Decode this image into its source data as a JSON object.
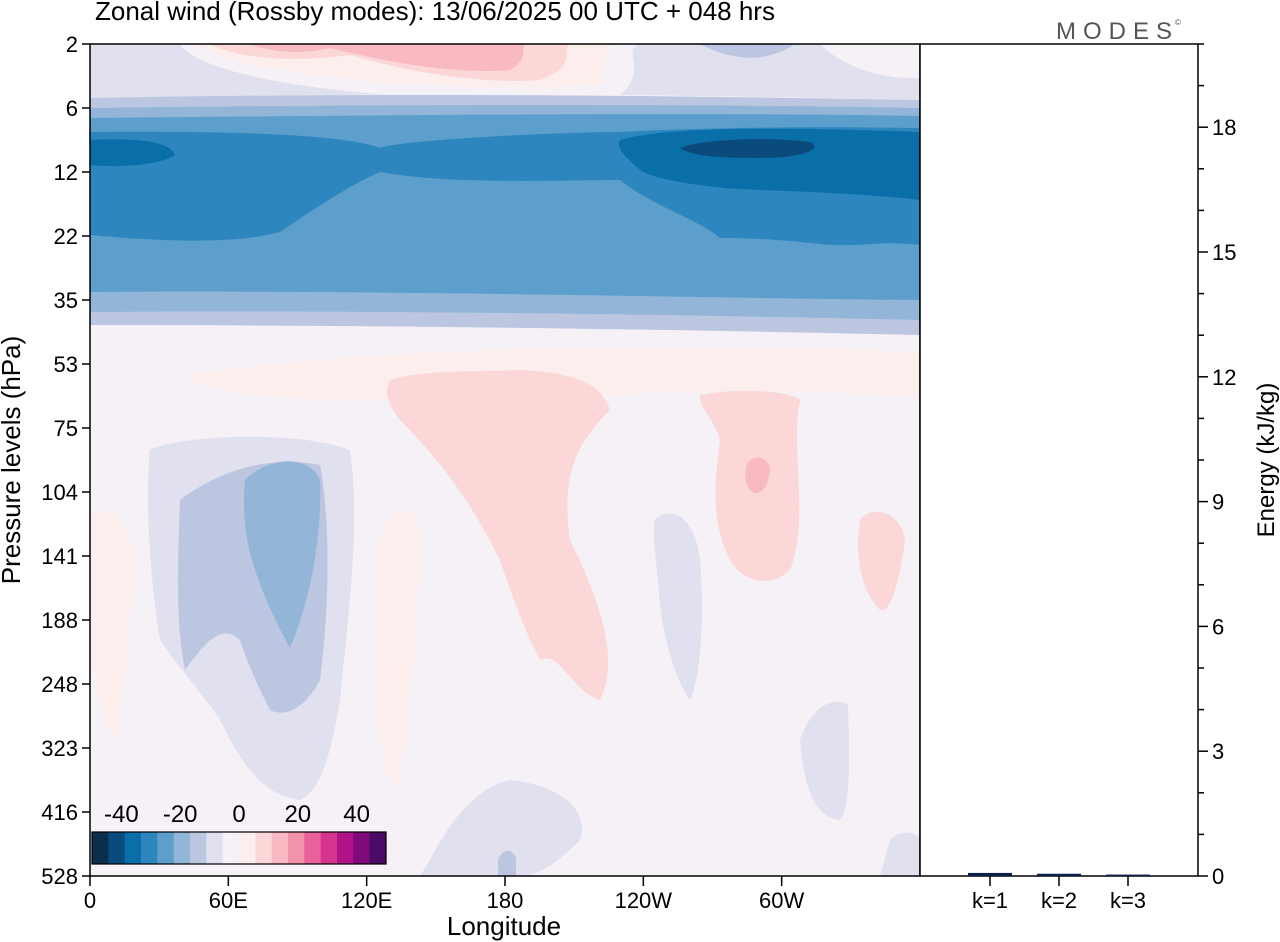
{
  "header": {
    "title": "Zonal wind (Rossby modes):  13/06/2025  00 UTC  + 048 hrs",
    "logo": "MODES",
    "logo_mark": "©"
  },
  "chart_data": [
    {
      "type": "heatmap",
      "title": "Zonal wind (Rossby modes):  13/06/2025  00 UTC  + 048 hrs",
      "xlabel": "Longitude",
      "ylabel": "Pressure levels (hPa)",
      "x_ticks": [
        "0",
        "60E",
        "120E",
        "180",
        "120W",
        "60W"
      ],
      "x_tick_values_deg": [
        0,
        60,
        120,
        180,
        240,
        300
      ],
      "xlim_deg": [
        0,
        360
      ],
      "y_ticks": [
        "2",
        "6",
        "12",
        "22",
        "35",
        "53",
        "75",
        "104",
        "141",
        "188",
        "248",
        "323",
        "416",
        "528"
      ],
      "y_scale": "level-index (top 2 hPa, bottom 528 hPa)",
      "colorbar": {
        "tick_labels": [
          "-40",
          "-20",
          "0",
          "20",
          "40"
        ],
        "tick_values": [
          -40,
          -20,
          0,
          20,
          40
        ],
        "range": [
          -50,
          50
        ],
        "colors": [
          "#0a2f4e",
          "#0b4a7c",
          "#0a6ea8",
          "#2d86bd",
          "#5c9fcc",
          "#93b6d8",
          "#bcc6e0",
          "#e0e0ee",
          "#f5f1f6",
          "#fdeeee",
          "#fbd7d7",
          "#f8b9c2",
          "#f392ab",
          "#e9619a",
          "#d6338f",
          "#b0128a",
          "#7e0a7b",
          "#4a0a66"
        ],
        "placement": "bottom-left"
      },
      "features": [
        {
          "description": "strong easterly band",
          "levels_hPa": [
            8,
            25
          ],
          "value_approx": -30
        },
        {
          "description": "easterly core near 60W-40W",
          "level_hPa": 10,
          "value_approx": -42
        },
        {
          "description": "westerly region near top",
          "level_hPa": 3,
          "value_approx": 10
        },
        {
          "description": "westerly lobes 150E-120W and 80W-50W",
          "levels_hPa": [
            70,
            250
          ],
          "value_approx": 6
        },
        {
          "description": "easterly lobe near 90E",
          "levels_hPa": [
            90,
            250
          ],
          "value_approx": -15
        }
      ]
    },
    {
      "type": "bar",
      "categories": [
        "k=1",
        "k=2",
        "k=3"
      ],
      "values": [
        0.05,
        0.03,
        0.01
      ],
      "ylabel": "Energy (kJ/kg)",
      "y_ticks": [
        0,
        3,
        6,
        9,
        12,
        15,
        18
      ],
      "ylim": [
        0,
        20
      ]
    }
  ]
}
